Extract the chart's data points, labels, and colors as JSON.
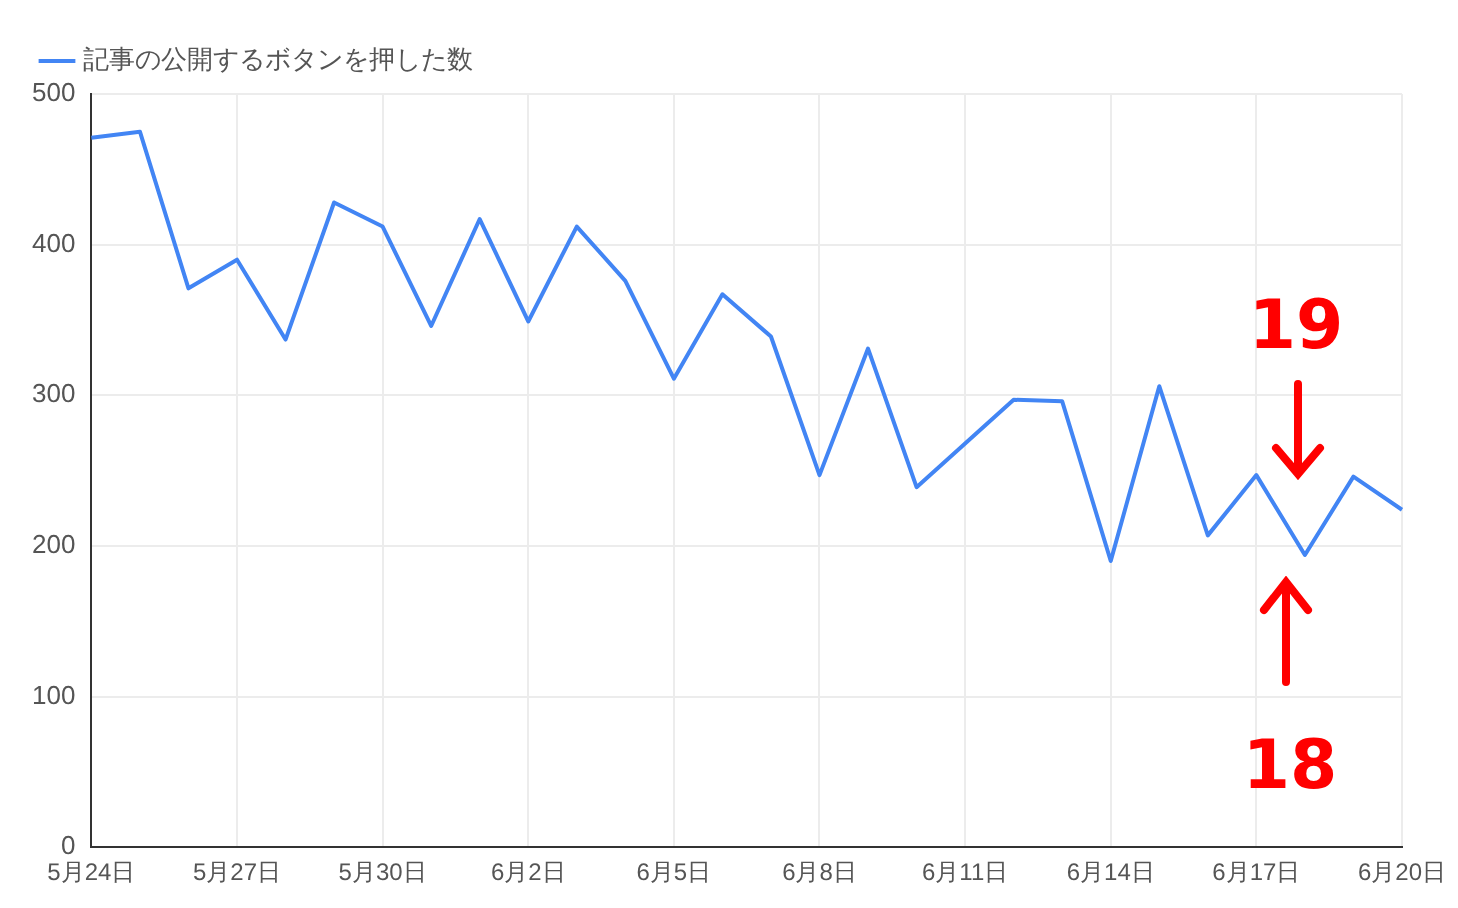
{
  "chart_data": {
    "type": "line",
    "categories": [
      "5月24日",
      null,
      null,
      "5月27日",
      null,
      null,
      "5月30日",
      null,
      null,
      "6月2日",
      null,
      null,
      "6月5日",
      null,
      null,
      "6月8日",
      null,
      null,
      "6月11日",
      null,
      null,
      "6月14日",
      null,
      null,
      "6月17日",
      null,
      null,
      "6月20日"
    ],
    "series": [
      {
        "name": "記事の公開するボタンを押した数",
        "color": "#4285f4",
        "values": [
          471,
          475,
          371,
          390,
          337,
          428,
          412,
          346,
          417,
          349,
          412,
          376,
          311,
          367,
          339,
          247,
          331,
          239,
          268,
          297,
          296,
          190,
          306,
          207,
          247,
          194,
          246,
          224
        ]
      }
    ],
    "ylim": [
      0,
      500
    ],
    "yticks": [
      0,
      100,
      200,
      300,
      400,
      500
    ],
    "grid": true,
    "legend": "top left",
    "marker": "none",
    "line_style": "solid",
    "annotations": [
      "19",
      "18"
    ]
  }
}
